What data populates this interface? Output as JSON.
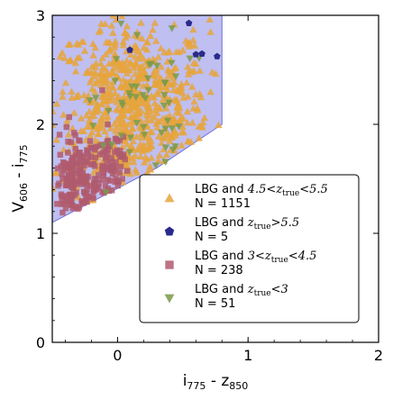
{
  "chart_data": {
    "type": "scatter",
    "xlabel": "i",
    "xlabel_sub1": "775",
    "xlabel_mid": " - z",
    "xlabel_sub2": "850",
    "ylabel": "V",
    "ylabel_sub1": "606",
    "ylabel_mid": " - i",
    "ylabel_sub2": "775",
    "xlim": [
      -0.5,
      2.0
    ],
    "ylim": [
      0.0,
      3.0
    ],
    "xticks": [
      0,
      1,
      2
    ],
    "yticks": [
      0,
      1,
      2,
      3
    ],
    "selection_region": {
      "description_vertices": [
        [
          -0.5,
          1.1
        ],
        [
          0.3,
          1.6
        ],
        [
          0.8,
          2.0
        ],
        [
          0.8,
          3.0
        ],
        [
          -0.5,
          3.0
        ]
      ],
      "fill": "#b8b8ef",
      "stroke": "#6f6fd8"
    },
    "series": [
      {
        "label_prefix": "LBG and ",
        "label_math": "4.5<",
        "label_var": "z",
        "label_sub": "true",
        "label_suffix": "<5.5",
        "count_label": "N = 1151",
        "marker": "triangle-up",
        "color": "#e6a53c",
        "n": 1151
      },
      {
        "label_prefix": "LBG and ",
        "label_math": "",
        "label_var": "z",
        "label_sub": "true",
        "label_suffix": ">5.5",
        "count_label": "N = 5",
        "marker": "pentagon",
        "color": "#2a2a8c",
        "n": 5
      },
      {
        "label_prefix": "LBG and ",
        "label_math": "3<",
        "label_var": "z",
        "label_sub": "true",
        "label_suffix": "<4.5",
        "count_label": "N = 238",
        "marker": "square",
        "color": "#b05a6e",
        "n": 238
      },
      {
        "label_prefix": "LBG and ",
        "label_math": "",
        "label_var": "z",
        "label_sub": "true",
        "label_suffix": "<3",
        "count_label": "N = 51",
        "marker": "triangle-down",
        "color": "#7a9a4a",
        "n": 51
      }
    ],
    "legend_position": "lower-right"
  }
}
